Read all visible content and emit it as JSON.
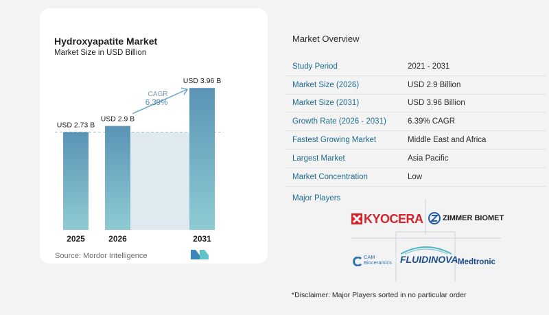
{
  "header": {
    "title": "Hydroxyapatite Market",
    "subtitle": "Market Size in USD Billion"
  },
  "chart_data": {
    "type": "bar",
    "categories": [
      "2025",
      "2026",
      "2031"
    ],
    "values": [
      2.73,
      2.9,
      3.96
    ],
    "value_labels": [
      "USD 2.73 B",
      "USD 2.9 B",
      "USD 3.96 B"
    ],
    "ylim": [
      0,
      4.5
    ],
    "grid": false,
    "annotation": {
      "label": "CAGR",
      "value": "6.39%"
    },
    "colors": {
      "bar_top": "#5b93b5",
      "bar_bottom": "#8fcbd3",
      "shade": "#dfeaf0",
      "arrow": "#6aa6c6",
      "dashed": "#9fbfd0"
    }
  },
  "footer": {
    "source": "Source:  Mordor Intelligence"
  },
  "overview": {
    "title": "Market Overview",
    "rows": [
      {
        "label": "Study Period",
        "value": "2021 - 2031"
      },
      {
        "label": "Market Size (2026)",
        "value": "USD 2.9 Billion"
      },
      {
        "label": "Market Size (2031)",
        "value": "USD 3.96 Billion"
      },
      {
        "label": "Growth Rate (2026 - 2031)",
        "value": "6.39% CAGR"
      },
      {
        "label": "Fastest Growing Market",
        "value": "Middle East and Africa"
      },
      {
        "label": "Largest Market",
        "value": "Asia Pacific"
      },
      {
        "label": "Market Concentration",
        "value": "Low"
      }
    ]
  },
  "players": {
    "title": "Major Players",
    "logos": {
      "kyocera": "KYOCERA",
      "zimmer": "ZIMMER BIOMET",
      "cam_top": "CAM",
      "cam_bottom": "Bioceramics",
      "fluidinova": "FLUIDINOVA",
      "medtronic": "Medtronic"
    }
  },
  "disclaimer": "*Disclaimer: Major Players sorted in no particular order"
}
